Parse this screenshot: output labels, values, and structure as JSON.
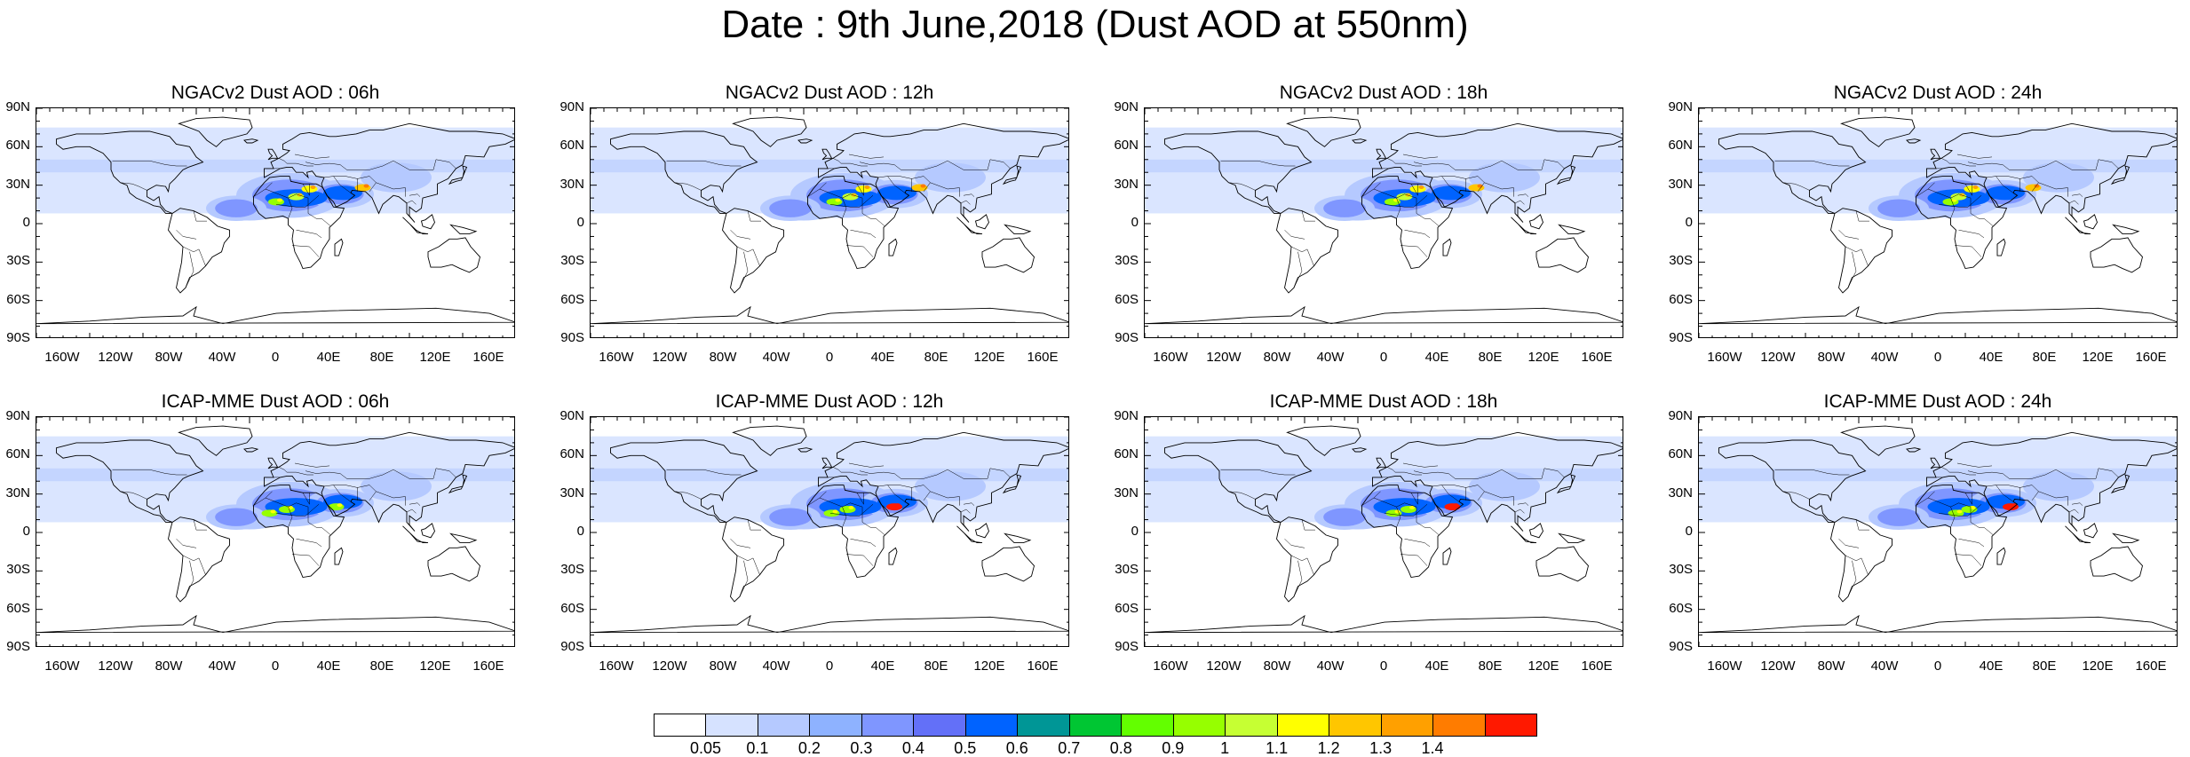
{
  "title": "Date : 9th June,2018 (Dust AOD at 550nm)",
  "lat_labels": [
    "90N",
    "60N",
    "30N",
    "0",
    "30S",
    "60S",
    "90S"
  ],
  "lon_labels": [
    "160W",
    "120W",
    "80W",
    "40W",
    "0",
    "40E",
    "80E",
    "120E",
    "160E"
  ],
  "panels": [
    {
      "title": "NGACv2 Dust AOD : 06h",
      "model": "NGACv2",
      "hour": "06h"
    },
    {
      "title": "NGACv2 Dust AOD : 12h",
      "model": "NGACv2",
      "hour": "12h"
    },
    {
      "title": "NGACv2 Dust AOD : 18h",
      "model": "NGACv2",
      "hour": "18h"
    },
    {
      "title": "NGACv2 Dust AOD : 24h",
      "model": "NGACv2",
      "hour": "24h"
    },
    {
      "title": "ICAP-MME Dust AOD : 06h",
      "model": "ICAP-MME",
      "hour": "06h"
    },
    {
      "title": "ICAP-MME Dust AOD : 12h",
      "model": "ICAP-MME",
      "hour": "12h"
    },
    {
      "title": "ICAP-MME Dust AOD : 18h",
      "model": "ICAP-MME",
      "hour": "18h"
    },
    {
      "title": "ICAP-MME Dust AOD : 24h",
      "model": "ICAP-MME",
      "hour": "24h"
    }
  ],
  "colorbar": {
    "labels": [
      "0.05",
      "0.1",
      "0.2",
      "0.3",
      "0.4",
      "0.5",
      "0.6",
      "0.7",
      "0.8",
      "0.9",
      "1",
      "1.1",
      "1.2",
      "1.3",
      "1.4"
    ],
    "colors": [
      "#ffffff",
      "#d6e2ff",
      "#b5c9ff",
      "#8eb2ff",
      "#7f96ff",
      "#6370f8",
      "#0063ff",
      "#009696",
      "#00c633",
      "#63ff00",
      "#96ff00",
      "#c6ff33",
      "#ffff00",
      "#ffc600",
      "#ffa000",
      "#ff7c00",
      "#ff1900"
    ]
  }
}
